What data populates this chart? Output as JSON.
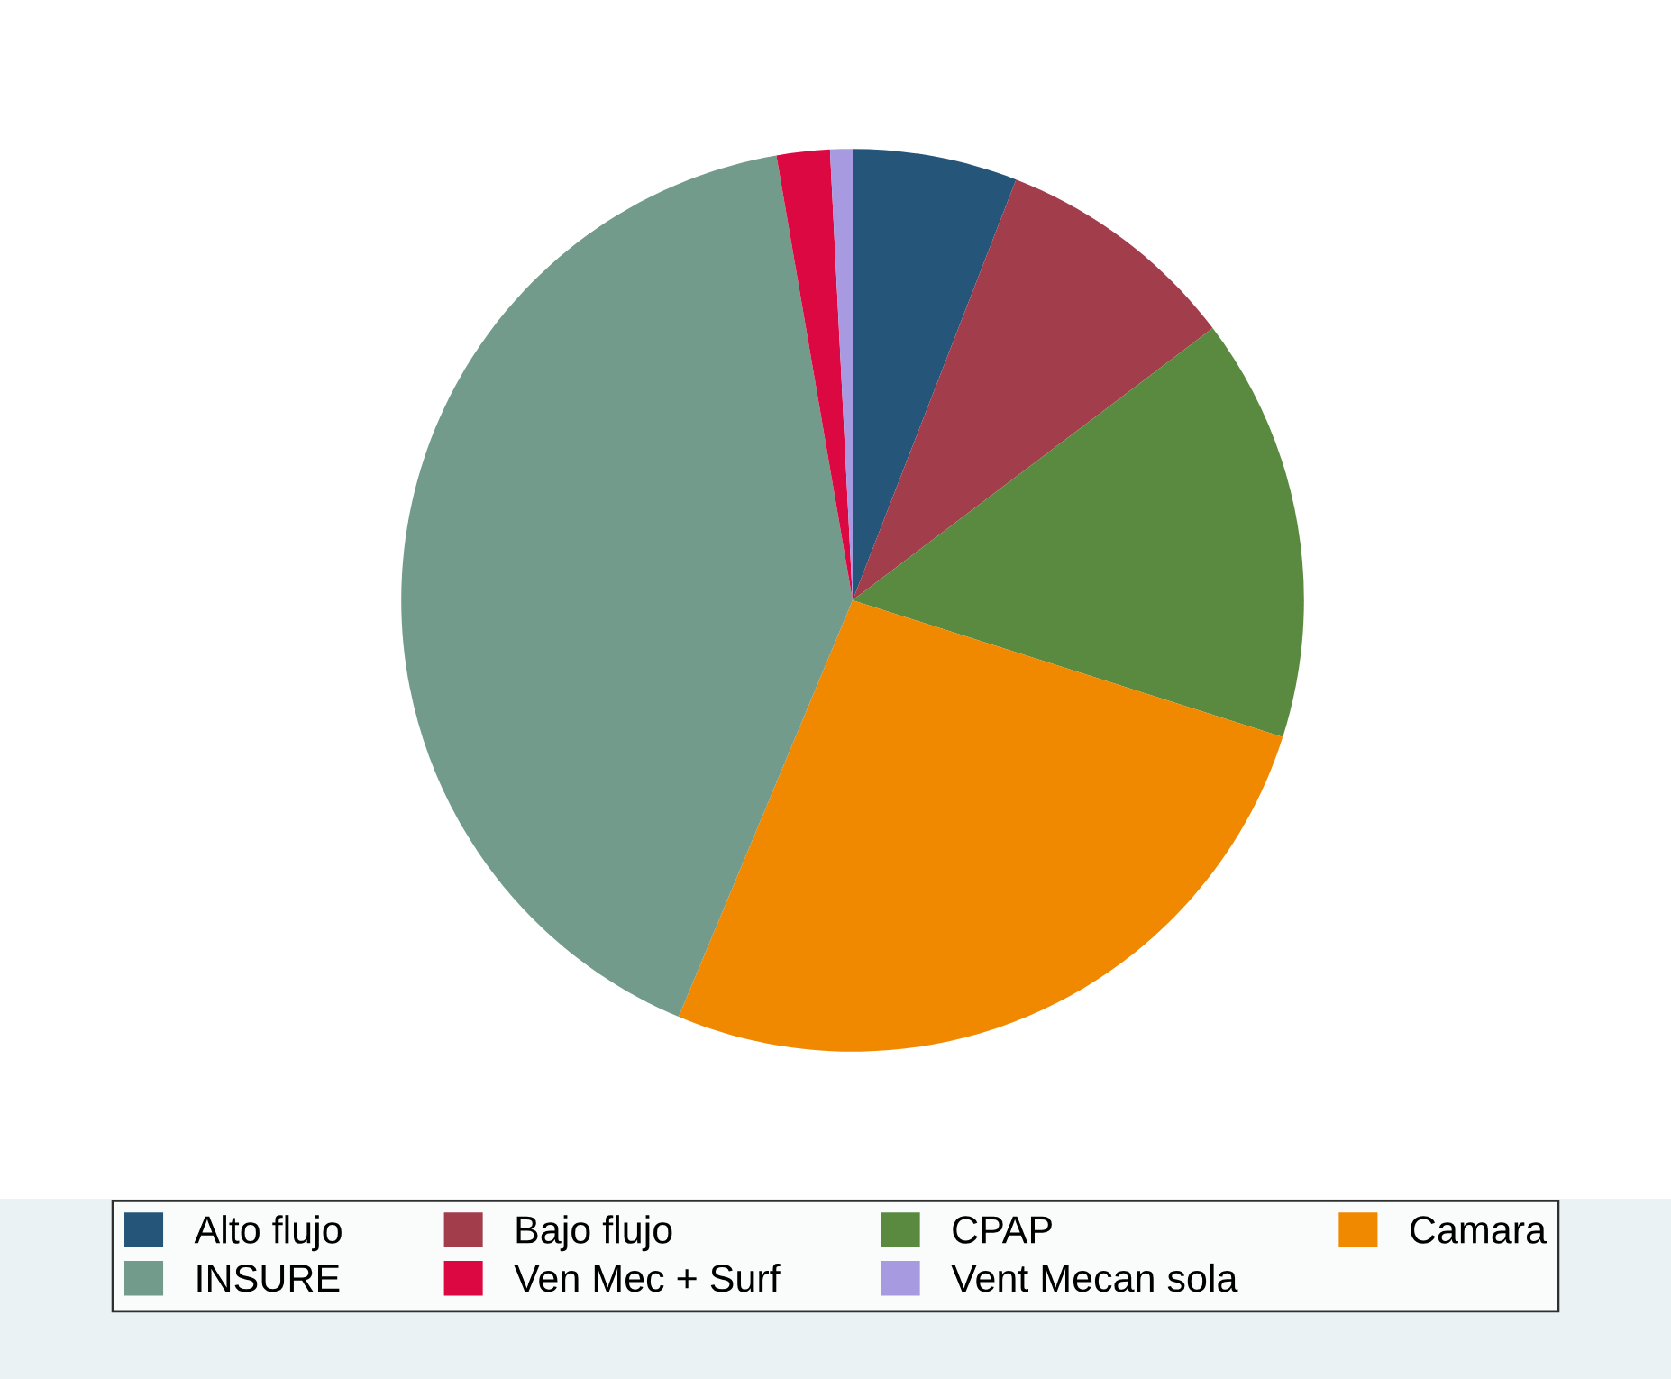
{
  "chart_data": {
    "type": "pie",
    "categories": [
      "Alto flujo",
      "Bajo flujo",
      "CPAP",
      "Camara",
      "INSURE",
      "Ven Mec + Surf",
      "Vent Mecan sola"
    ],
    "values": [
      5.9,
      8.8,
      15.2,
      26.4,
      41.0,
      1.9,
      0.8
    ],
    "colors": [
      "#26557a",
      "#a23d4b",
      "#5a8a40",
      "#f08800",
      "#729b8c",
      "#dc0841",
      "#a89ae0"
    ],
    "legend": "bottom"
  }
}
